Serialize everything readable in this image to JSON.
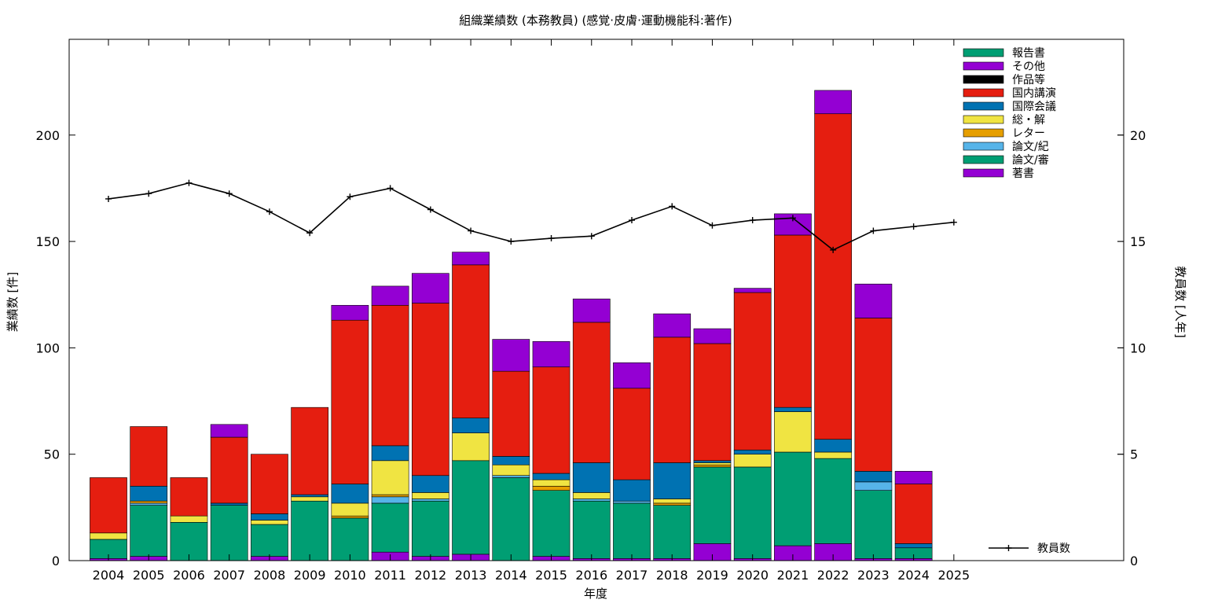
{
  "chart_data": {
    "type": "bar",
    "stacked": true,
    "title": "組織業績数 (本務教員) (感覚·皮膚·運動機能科:著作)",
    "xlabel": "年度",
    "ylabel": "業績数 [件]",
    "y2label": "教員数 [人年]",
    "ylim": [
      0,
      245
    ],
    "y2lim": [
      0,
      24.5
    ],
    "yticks": [
      0,
      50,
      100,
      150,
      200
    ],
    "y2ticks": [
      0,
      5,
      10,
      15,
      20
    ],
    "grid": false,
    "legend_position": "top-right",
    "categories": [
      "2004",
      "2005",
      "2006",
      "2007",
      "2008",
      "2009",
      "2010",
      "2011",
      "2012",
      "2013",
      "2014",
      "2015",
      "2016",
      "2017",
      "2018",
      "2019",
      "2020",
      "2021",
      "2022",
      "2023",
      "2024",
      "2025"
    ],
    "series": [
      {
        "name": "著書",
        "color": "#9400d3",
        "values": [
          1,
          2,
          0,
          0,
          2,
          0,
          0,
          4,
          2,
          3,
          0,
          2,
          1,
          1,
          1,
          8,
          1,
          7,
          8,
          1,
          1,
          0
        ]
      },
      {
        "name": "論文/審",
        "color": "#009e73",
        "values": [
          9,
          24,
          18,
          26,
          15,
          28,
          20,
          23,
          26,
          44,
          39,
          31,
          27,
          26,
          25,
          36,
          43,
          44,
          40,
          32,
          5,
          0
        ]
      },
      {
        "name": "論文/紀",
        "color": "#56b4e9",
        "values": [
          0,
          1,
          0,
          0,
          0,
          0,
          0,
          3,
          1,
          0,
          1,
          0,
          1,
          1,
          0,
          0,
          0,
          0,
          0,
          4,
          0,
          0
        ]
      },
      {
        "name": "レター",
        "color": "#e69f00",
        "values": [
          0,
          1,
          0,
          0,
          0,
          0,
          1,
          1,
          0,
          0,
          0,
          2,
          0,
          0,
          1,
          1,
          0,
          0,
          0,
          0,
          0,
          0
        ]
      },
      {
        "name": "総・解",
        "color": "#f0e442",
        "values": [
          3,
          0,
          3,
          0,
          2,
          2,
          6,
          16,
          3,
          13,
          5,
          3,
          3,
          0,
          2,
          1,
          6,
          19,
          3,
          0,
          0,
          0
        ]
      },
      {
        "name": "国際会議",
        "color": "#0072b2",
        "values": [
          0,
          7,
          0,
          1,
          3,
          1,
          9,
          7,
          8,
          7,
          4,
          3,
          14,
          10,
          17,
          1,
          2,
          2,
          6,
          5,
          2,
          0
        ]
      },
      {
        "name": "国内講演",
        "color": "#e51e10",
        "values": [
          26,
          28,
          18,
          31,
          28,
          41,
          77,
          66,
          81,
          72,
          40,
          50,
          66,
          43,
          59,
          55,
          74,
          81,
          153,
          72,
          28,
          0
        ]
      },
      {
        "name": "作品等",
        "color": "#000000",
        "values": [
          0,
          0,
          0,
          0,
          0,
          0,
          0,
          0,
          0,
          0,
          0,
          0,
          0,
          0,
          0,
          0,
          0,
          0,
          0,
          0,
          0,
          0
        ]
      },
      {
        "name": "その他",
        "color": "#9400d3",
        "values": [
          0,
          0,
          0,
          6,
          0,
          0,
          7,
          9,
          14,
          6,
          15,
          12,
          11,
          12,
          11,
          7,
          2,
          10,
          11,
          16,
          6,
          0
        ]
      },
      {
        "name": "報告書",
        "color": "#009e73",
        "values": [
          0,
          0,
          0,
          0,
          0,
          0,
          0,
          0,
          0,
          0,
          0,
          0,
          0,
          0,
          0,
          0,
          0,
          0,
          0,
          0,
          0,
          0
        ]
      }
    ],
    "legend_order": [
      "報告書",
      "その他",
      "作品等",
      "国内講演",
      "国際会議",
      "総・解",
      "レター",
      "論文/紀",
      "論文/審",
      "著書"
    ],
    "line_series": {
      "name": "教員数",
      "axis": "y2",
      "color": "#000000",
      "values": [
        17.0,
        17.25,
        17.75,
        17.25,
        16.4,
        15.4,
        17.1,
        17.5,
        16.5,
        15.5,
        15.0,
        15.15,
        15.25,
        16.0,
        16.65,
        15.75,
        16.0,
        16.1,
        14.6,
        15.5,
        15.7,
        15.9
      ]
    }
  }
}
